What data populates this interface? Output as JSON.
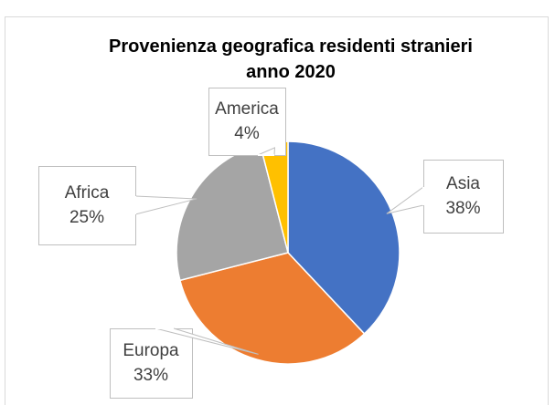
{
  "chart_data": {
    "type": "pie",
    "title": "Provenienza geografica residenti stranieri anno 2020",
    "categories": [
      "Asia",
      "Europa",
      "Africa",
      "America"
    ],
    "values": [
      38,
      33,
      25,
      4
    ],
    "value_labels": [
      "38%",
      "33%",
      "25%",
      "4%"
    ],
    "colors": [
      "#4472c4",
      "#ed7d31",
      "#a5a5a5",
      "#ffc000"
    ]
  }
}
